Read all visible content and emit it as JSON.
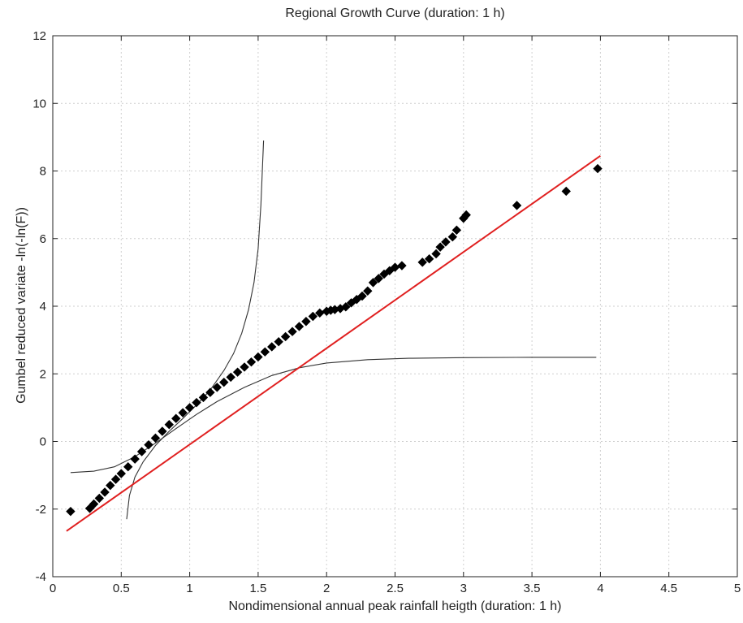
{
  "chart_data": {
    "type": "scatter",
    "title": "Regional Growth Curve (duration: 1 h)",
    "xlabel": "Nondimensional annual peak rainfall heigth (duration: 1 h)",
    "ylabel": "Gumbel reduced variate -ln(-ln(F))",
    "xlim": [
      0,
      5
    ],
    "ylim": [
      -4,
      12
    ],
    "xticks": [
      0,
      0.5,
      1,
      1.5,
      2,
      2.5,
      3,
      3.5,
      4,
      4.5,
      5
    ],
    "xtick_labels": [
      "0",
      "0.5",
      "1",
      "1.5",
      "2",
      "2.5",
      "3",
      "3.5",
      "4",
      "4.5",
      "5"
    ],
    "yticks": [
      -4,
      -2,
      0,
      2,
      4,
      6,
      8,
      10,
      12
    ],
    "ytick_labels": [
      "-4",
      "-2",
      "0",
      "2",
      "4",
      "6",
      "8",
      "10",
      "12"
    ],
    "grid": true,
    "colors": {
      "fit": "#e02020",
      "points": "#000000",
      "bounds": "#333333",
      "grid": "#cfcfcf"
    },
    "series": [
      {
        "kind": "points",
        "x": [
          0.13,
          0.27,
          0.3,
          0.34,
          0.38,
          0.42,
          0.46,
          0.5,
          0.55,
          0.6,
          0.65,
          0.7,
          0.75,
          0.8,
          0.85,
          0.9,
          0.95,
          1.0,
          1.05,
          1.1,
          1.15,
          1.2,
          1.25,
          1.3,
          1.35,
          1.4,
          1.45,
          1.5,
          1.55,
          1.6,
          1.65,
          1.7,
          1.75,
          1.8,
          1.85,
          1.9,
          1.95,
          2.0,
          2.03,
          2.06,
          2.1,
          2.14,
          2.18,
          2.22,
          2.26,
          2.3,
          2.34,
          2.38,
          2.42,
          2.46,
          2.5,
          2.55,
          2.7,
          2.75,
          2.8,
          2.83,
          2.87,
          2.92,
          2.95,
          3.0,
          3.02,
          3.39,
          3.75,
          3.98
        ],
        "y": [
          -2.07,
          -1.98,
          -1.85,
          -1.68,
          -1.5,
          -1.3,
          -1.12,
          -0.95,
          -0.75,
          -0.52,
          -0.3,
          -0.1,
          0.1,
          0.3,
          0.5,
          0.68,
          0.85,
          1.0,
          1.15,
          1.3,
          1.45,
          1.6,
          1.75,
          1.9,
          2.05,
          2.2,
          2.35,
          2.5,
          2.65,
          2.8,
          2.95,
          3.1,
          3.25,
          3.4,
          3.55,
          3.7,
          3.8,
          3.85,
          3.88,
          3.9,
          3.93,
          3.98,
          4.1,
          4.2,
          4.3,
          4.45,
          4.7,
          4.82,
          4.95,
          5.05,
          5.15,
          5.2,
          5.3,
          5.4,
          5.55,
          5.75,
          5.9,
          6.05,
          6.25,
          6.6,
          6.7,
          6.98,
          7.4,
          8.07
        ]
      },
      {
        "kind": "fit",
        "x": [
          0.1,
          4.0
        ],
        "y": [
          -2.65,
          8.45
        ]
      },
      {
        "kind": "lower-bound",
        "x": [
          0.13,
          0.3,
          0.45,
          0.6,
          0.75,
          0.9,
          1.05,
          1.2,
          1.4,
          1.6,
          1.8,
          2.0,
          2.3,
          2.6,
          3.0,
          3.5,
          3.97
        ],
        "y": [
          -0.92,
          -0.88,
          -0.75,
          -0.45,
          -0.05,
          0.38,
          0.8,
          1.18,
          1.6,
          1.95,
          2.18,
          2.32,
          2.42,
          2.46,
          2.48,
          2.49,
          2.49
        ]
      },
      {
        "kind": "upper-bound",
        "x": [
          0.54,
          0.56,
          0.6,
          0.66,
          0.75,
          0.85,
          0.95,
          1.05,
          1.15,
          1.25,
          1.32,
          1.38,
          1.43,
          1.47,
          1.5,
          1.52,
          1.54
        ],
        "y": [
          -2.3,
          -1.6,
          -1.05,
          -0.6,
          -0.12,
          0.3,
          0.68,
          1.08,
          1.52,
          2.1,
          2.6,
          3.2,
          3.9,
          4.7,
          5.7,
          7.0,
          8.9
        ]
      }
    ]
  }
}
